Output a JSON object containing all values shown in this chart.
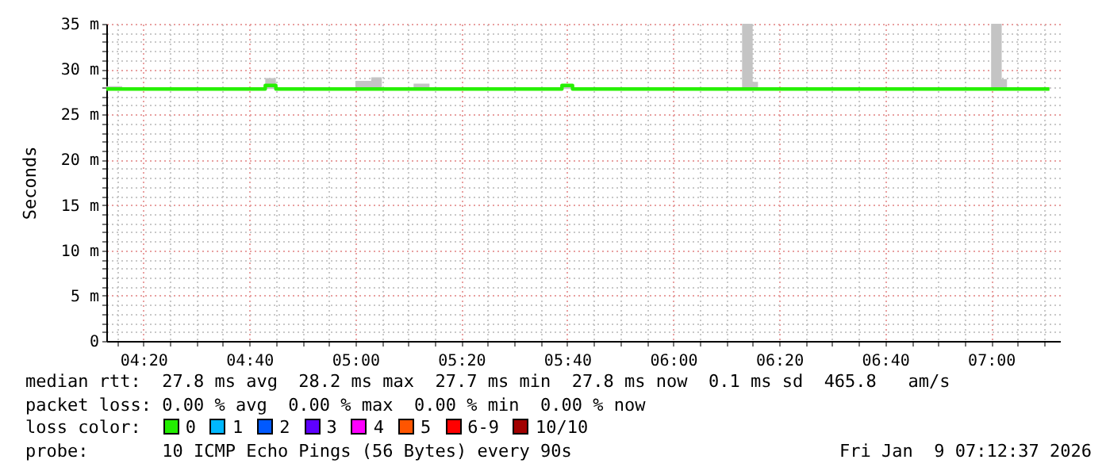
{
  "chart_data": {
    "type": "step",
    "ylabel": "Seconds",
    "xlim": [
      "2026-01-09T04:13",
      "2026-01-09T07:13"
    ],
    "xticks": [
      {
        "value": "2026-01-09T04:15",
        "label": null
      },
      {
        "value": "2026-01-09T04:20",
        "label": "04:20"
      },
      {
        "value": "2026-01-09T04:25",
        "label": null
      },
      {
        "value": "2026-01-09T04:30",
        "label": null
      },
      {
        "value": "2026-01-09T04:35",
        "label": null
      },
      {
        "value": "2026-01-09T04:40",
        "label": "04:40"
      },
      {
        "value": "2026-01-09T04:45",
        "label": null
      },
      {
        "value": "2026-01-09T04:50",
        "label": null
      },
      {
        "value": "2026-01-09T04:55",
        "label": null
      },
      {
        "value": "2026-01-09T05:00",
        "label": "05:00"
      },
      {
        "value": "2026-01-09T05:05",
        "label": null
      },
      {
        "value": "2026-01-09T05:10",
        "label": null
      },
      {
        "value": "2026-01-09T05:15",
        "label": null
      },
      {
        "value": "2026-01-09T05:20",
        "label": "05:20"
      },
      {
        "value": "2026-01-09T05:25",
        "label": null
      },
      {
        "value": "2026-01-09T05:30",
        "label": null
      },
      {
        "value": "2026-01-09T05:35",
        "label": null
      },
      {
        "value": "2026-01-09T05:40",
        "label": "05:40"
      },
      {
        "value": "2026-01-09T05:45",
        "label": null
      },
      {
        "value": "2026-01-09T05:50",
        "label": null
      },
      {
        "value": "2026-01-09T05:55",
        "label": null
      },
      {
        "value": "2026-01-09T06:00",
        "label": "06:00"
      },
      {
        "value": "2026-01-09T06:05",
        "label": null
      },
      {
        "value": "2026-01-09T06:10",
        "label": null
      },
      {
        "value": "2026-01-09T06:15",
        "label": null
      },
      {
        "value": "2026-01-09T06:20",
        "label": "06:20"
      },
      {
        "value": "2026-01-09T06:25",
        "label": null
      },
      {
        "value": "2026-01-09T06:30",
        "label": null
      },
      {
        "value": "2026-01-09T06:35",
        "label": null
      },
      {
        "value": "2026-01-09T06:40",
        "label": "06:40"
      },
      {
        "value": "2026-01-09T06:45",
        "label": null
      },
      {
        "value": "2026-01-09T06:50",
        "label": null
      },
      {
        "value": "2026-01-09T06:55",
        "label": null
      },
      {
        "value": "2026-01-09T07:00",
        "label": "07:00"
      },
      {
        "value": "2026-01-09T07:05",
        "label": null
      },
      {
        "value": "2026-01-09T07:10",
        "label": null
      }
    ],
    "ylim": [
      0,
      35
    ],
    "yticks": [
      0,
      {
        "value": 1,
        "label": null
      },
      {
        "value": 2,
        "label": null
      },
      {
        "value": 3,
        "label": null
      },
      {
        "value": 4,
        "label": null
      },
      {
        "value": 5,
        "label": "5 m"
      },
      {
        "value": 6,
        "label": null
      },
      {
        "value": 7,
        "label": null
      },
      {
        "value": 8,
        "label": null
      },
      {
        "value": 9,
        "label": null
      },
      {
        "value": 10,
        "label": "10 m"
      },
      {
        "value": 11,
        "label": null
      },
      {
        "value": 12,
        "label": null
      },
      {
        "value": 13,
        "label": null
      },
      {
        "value": 14,
        "label": null
      },
      {
        "value": 15,
        "label": "15 m"
      },
      {
        "value": 16,
        "label": null
      },
      {
        "value": 17,
        "label": null
      },
      {
        "value": 18,
        "label": null
      },
      {
        "value": 19,
        "label": null
      },
      {
        "value": 20,
        "label": "20 m"
      },
      {
        "value": 21,
        "label": null
      },
      {
        "value": 22,
        "label": null
      },
      {
        "value": 23,
        "label": null
      },
      {
        "value": 24,
        "label": null
      },
      {
        "value": 25,
        "label": "25 m"
      },
      {
        "value": 26,
        "label": null
      },
      {
        "value": 27,
        "label": null
      },
      {
        "value": 28,
        "label": null
      },
      {
        "value": 29,
        "label": null
      },
      {
        "value": 30,
        "label": "30 m"
      },
      {
        "value": 31,
        "label": null
      },
      {
        "value": 32,
        "label": null
      },
      {
        "value": 33,
        "label": null
      },
      {
        "value": 34,
        "label": null
      },
      {
        "value": 35,
        "label": "35 m"
      }
    ],
    "grid": true,
    "marker": "none",
    "line_style": "solid",
    "series": [
      {
        "color": "#26f000",
        "x": [
          "2026-01-09T04:13",
          "2026-01-09T04:16",
          "2026-01-09T04:20",
          "2026-01-09T04:25",
          "2026-01-09T04:30",
          "2026-01-09T04:35",
          "2026-01-09T04:40",
          "2026-01-09T04:43",
          "2026-01-09T04:45",
          "2026-01-09T04:50",
          "2026-01-09T04:55",
          "2026-01-09T05:00",
          "2026-01-09T05:03",
          "2026-01-09T05:05",
          "2026-01-09T05:11",
          "2026-01-09T05:14",
          "2026-01-09T05:20",
          "2026-01-09T05:25",
          "2026-01-09T05:30",
          "2026-01-09T05:35",
          "2026-01-09T05:39",
          "2026-01-09T05:41",
          "2026-01-09T05:45",
          "2026-01-09T05:50",
          "2026-01-09T05:55",
          "2026-01-09T06:00",
          "2026-01-09T06:05",
          "2026-01-09T06:10",
          "2026-01-09T06:13",
          "2026-01-09T06:15",
          "2026-01-09T06:16",
          "2026-01-09T06:20",
          "2026-01-09T06:25",
          "2026-01-09T06:30",
          "2026-01-09T06:35",
          "2026-01-09T06:40",
          "2026-01-09T06:45",
          "2026-01-09T06:50",
          "2026-01-09T06:55",
          "2026-01-09T07:00",
          "2026-01-09T07:02",
          "2026-01-09T07:03",
          "2026-01-09T07:06",
          "2026-01-09T07:11"
        ],
        "values": [
          27.8,
          27.8,
          27.8,
          27.8,
          27.8,
          27.8,
          27.8,
          28.2,
          27.8,
          27.8,
          27.8,
          27.8,
          27.8,
          27.8,
          27.8,
          27.8,
          27.8,
          27.8,
          27.8,
          27.8,
          28.2,
          27.8,
          27.8,
          27.8,
          27.8,
          27.8,
          27.8,
          27.8,
          27.8,
          27.8,
          27.8,
          27.8,
          27.8,
          27.8,
          27.8,
          27.8,
          27.8,
          27.8,
          27.8,
          27.8,
          27.8,
          27.8,
          27.8,
          27.8
        ],
        "lower": [
          27.7,
          27.7,
          27.7,
          27.7,
          27.7,
          27.7,
          27.7,
          27.8,
          27.7,
          27.7,
          27.7,
          27.7,
          27.7,
          27.7,
          27.7,
          27.7,
          27.7,
          27.7,
          27.7,
          27.7,
          27.8,
          27.7,
          27.7,
          27.7,
          27.7,
          27.7,
          27.7,
          27.7,
          27.7,
          27.7,
          27.7,
          27.7,
          27.7,
          27.7,
          27.7,
          27.7,
          27.7,
          27.7,
          27.7,
          27.7,
          27.7,
          27.7,
          27.7,
          27.7
        ],
        "upper": [
          28.1,
          27.9,
          27.9,
          27.9,
          27.9,
          27.9,
          27.9,
          29,
          27.9,
          27.9,
          27.9,
          28.7,
          29.1,
          27.9,
          28.4,
          27.9,
          27.9,
          27.9,
          27.9,
          27.9,
          28.2,
          27.9,
          27.9,
          27.9,
          27.9,
          27.9,
          27.9,
          27.9,
          35,
          28.6,
          27.9,
          27.9,
          27.9,
          27.9,
          27.9,
          27.9,
          27.9,
          27.9,
          27.9,
          35,
          28.9,
          27.9,
          27.9,
          27.9
        ]
      }
    ],
    "annotations": [
      "median rtt:  27.8 ms avg  28.2 ms max  27.7 ms min  27.8 ms now  0.1 ms sd  465.8   am/s",
      "packet loss: 0.00 % avg  0.00 % max  0.00 % min  0.00 % now",
      "loss color:",
      "0",
      "1",
      "2",
      "3",
      "4",
      "5",
      "6-9",
      "10/10",
      "probe:       10 ICMP Echo Pings (56 Bytes) every 90s",
      "Fri Jan  9 07:12:37 2026"
    ]
  }
}
